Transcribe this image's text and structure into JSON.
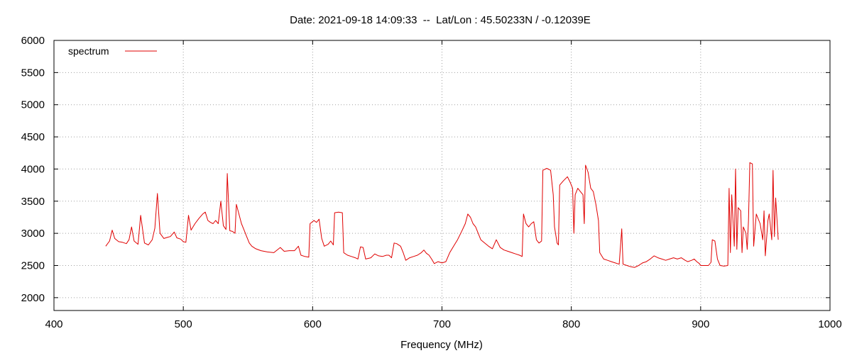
{
  "chart_data": {
    "type": "line",
    "title": "Date: 2021-09-18 14:09:33  --  Lat/Lon : 45.50233N / -0.12039E",
    "xlabel": "Frequency (MHz)",
    "ylabel": "",
    "xlim": [
      400,
      1000
    ],
    "ylim": [
      1800,
      6000
    ],
    "xticks": [
      400,
      500,
      600,
      700,
      800,
      900,
      1000
    ],
    "yticks": [
      2000,
      2500,
      3000,
      3500,
      4000,
      4500,
      5000,
      5500,
      6000
    ],
    "grid": true,
    "legend_position": "top-left",
    "series": [
      {
        "name": "spectrum",
        "color": "#e00000",
        "points": [
          [
            440,
            2800
          ],
          [
            443,
            2880
          ],
          [
            445,
            3050
          ],
          [
            447,
            2920
          ],
          [
            450,
            2870
          ],
          [
            453,
            2860
          ],
          [
            456,
            2840
          ],
          [
            458,
            2900
          ],
          [
            460,
            3100
          ],
          [
            462,
            2880
          ],
          [
            465,
            2830
          ],
          [
            467,
            3280
          ],
          [
            470,
            2850
          ],
          [
            473,
            2820
          ],
          [
            476,
            2900
          ],
          [
            478,
            3080
          ],
          [
            480,
            3620
          ],
          [
            482,
            3000
          ],
          [
            485,
            2920
          ],
          [
            488,
            2940
          ],
          [
            490,
            2950
          ],
          [
            493,
            3020
          ],
          [
            495,
            2930
          ],
          [
            498,
            2910
          ],
          [
            500,
            2870
          ],
          [
            502,
            2860
          ],
          [
            504,
            3280
          ],
          [
            506,
            3050
          ],
          [
            509,
            3150
          ],
          [
            512,
            3230
          ],
          [
            515,
            3300
          ],
          [
            517,
            3330
          ],
          [
            519,
            3200
          ],
          [
            521,
            3170
          ],
          [
            523,
            3150
          ],
          [
            525,
            3200
          ],
          [
            527,
            3150
          ],
          [
            529,
            3500
          ],
          [
            531,
            3120
          ],
          [
            533,
            3060
          ],
          [
            534,
            3930
          ],
          [
            536,
            3040
          ],
          [
            538,
            3030
          ],
          [
            540,
            3000
          ],
          [
            541,
            3450
          ],
          [
            543,
            3300
          ],
          [
            545,
            3150
          ],
          [
            547,
            3050
          ],
          [
            549,
            2950
          ],
          [
            551,
            2850
          ],
          [
            553,
            2800
          ],
          [
            556,
            2760
          ],
          [
            560,
            2730
          ],
          [
            565,
            2710
          ],
          [
            570,
            2700
          ],
          [
            575,
            2780
          ],
          [
            578,
            2720
          ],
          [
            582,
            2730
          ],
          [
            586,
            2730
          ],
          [
            589,
            2800
          ],
          [
            591,
            2660
          ],
          [
            594,
            2640
          ],
          [
            597,
            2630
          ],
          [
            598,
            3150
          ],
          [
            601,
            3200
          ],
          [
            603,
            3170
          ],
          [
            605,
            3220
          ],
          [
            607,
            2920
          ],
          [
            609,
            2800
          ],
          [
            612,
            2830
          ],
          [
            614,
            2880
          ],
          [
            616,
            2820
          ],
          [
            617,
            3320
          ],
          [
            620,
            3330
          ],
          [
            623,
            3320
          ],
          [
            624,
            2700
          ],
          [
            627,
            2660
          ],
          [
            630,
            2640
          ],
          [
            633,
            2620
          ],
          [
            635,
            2600
          ],
          [
            637,
            2790
          ],
          [
            639,
            2780
          ],
          [
            641,
            2600
          ],
          [
            645,
            2620
          ],
          [
            648,
            2680
          ],
          [
            651,
            2650
          ],
          [
            654,
            2640
          ],
          [
            657,
            2660
          ],
          [
            659,
            2660
          ],
          [
            661,
            2620
          ],
          [
            663,
            2850
          ],
          [
            665,
            2840
          ],
          [
            668,
            2800
          ],
          [
            670,
            2700
          ],
          [
            672,
            2580
          ],
          [
            675,
            2620
          ],
          [
            678,
            2640
          ],
          [
            681,
            2660
          ],
          [
            684,
            2700
          ],
          [
            686,
            2740
          ],
          [
            688,
            2690
          ],
          [
            690,
            2660
          ],
          [
            692,
            2600
          ],
          [
            694,
            2530
          ],
          [
            697,
            2560
          ],
          [
            700,
            2540
          ],
          [
            703,
            2560
          ],
          [
            706,
            2700
          ],
          [
            709,
            2800
          ],
          [
            712,
            2900
          ],
          [
            715,
            3020
          ],
          [
            718,
            3150
          ],
          [
            720,
            3300
          ],
          [
            722,
            3250
          ],
          [
            724,
            3150
          ],
          [
            726,
            3100
          ],
          [
            728,
            3000
          ],
          [
            730,
            2900
          ],
          [
            733,
            2850
          ],
          [
            736,
            2800
          ],
          [
            739,
            2760
          ],
          [
            742,
            2900
          ],
          [
            745,
            2780
          ],
          [
            748,
            2740
          ],
          [
            751,
            2720
          ],
          [
            754,
            2700
          ],
          [
            757,
            2680
          ],
          [
            760,
            2660
          ],
          [
            762,
            2640
          ],
          [
            763,
            3300
          ],
          [
            765,
            3150
          ],
          [
            767,
            3100
          ],
          [
            769,
            3150
          ],
          [
            771,
            3180
          ],
          [
            773,
            2900
          ],
          [
            775,
            2850
          ],
          [
            777,
            2880
          ],
          [
            778,
            3980
          ],
          [
            781,
            4010
          ],
          [
            784,
            3980
          ],
          [
            786,
            3600
          ],
          [
            787,
            3100
          ],
          [
            789,
            2850
          ],
          [
            790,
            2820
          ],
          [
            791,
            3750
          ],
          [
            794,
            3820
          ],
          [
            797,
            3880
          ],
          [
            799,
            3800
          ],
          [
            801,
            3700
          ],
          [
            802,
            3000
          ],
          [
            803,
            3600
          ],
          [
            805,
            3700
          ],
          [
            807,
            3650
          ],
          [
            809,
            3600
          ],
          [
            810,
            3150
          ],
          [
            811,
            4060
          ],
          [
            813,
            3950
          ],
          [
            815,
            3700
          ],
          [
            817,
            3650
          ],
          [
            819,
            3450
          ],
          [
            821,
            3200
          ],
          [
            822,
            2700
          ],
          [
            825,
            2600
          ],
          [
            828,
            2580
          ],
          [
            831,
            2560
          ],
          [
            834,
            2540
          ],
          [
            837,
            2520
          ],
          [
            839,
            3070
          ],
          [
            840,
            2520
          ],
          [
            843,
            2500
          ],
          [
            846,
            2480
          ],
          [
            849,
            2470
          ],
          [
            852,
            2500
          ],
          [
            855,
            2540
          ],
          [
            858,
            2560
          ],
          [
            861,
            2600
          ],
          [
            864,
            2650
          ],
          [
            867,
            2620
          ],
          [
            870,
            2600
          ],
          [
            873,
            2580
          ],
          [
            876,
            2600
          ],
          [
            879,
            2620
          ],
          [
            882,
            2600
          ],
          [
            885,
            2620
          ],
          [
            888,
            2580
          ],
          [
            890,
            2560
          ],
          [
            893,
            2580
          ],
          [
            895,
            2600
          ],
          [
            897,
            2560
          ],
          [
            899,
            2530
          ],
          [
            900,
            2500
          ],
          [
            903,
            2500
          ],
          [
            906,
            2500
          ],
          [
            908,
            2550
          ],
          [
            909,
            2900
          ],
          [
            911,
            2880
          ],
          [
            913,
            2600
          ],
          [
            915,
            2500
          ],
          [
            918,
            2490
          ],
          [
            921,
            2500
          ],
          [
            922,
            3700
          ],
          [
            923,
            2700
          ],
          [
            924,
            3600
          ],
          [
            926,
            2800
          ],
          [
            927,
            4000
          ],
          [
            928,
            2750
          ],
          [
            929,
            3400
          ],
          [
            931,
            3350
          ],
          [
            932,
            2700
          ],
          [
            933,
            3100
          ],
          [
            935,
            3000
          ],
          [
            936,
            2750
          ],
          [
            937,
            3200
          ],
          [
            938,
            4100
          ],
          [
            940,
            4080
          ],
          [
            941,
            2800
          ],
          [
            943,
            3300
          ],
          [
            945,
            3200
          ],
          [
            946,
            3150
          ],
          [
            948,
            2900
          ],
          [
            949,
            3350
          ],
          [
            950,
            2650
          ],
          [
            952,
            3200
          ],
          [
            953,
            3300
          ],
          [
            955,
            2900
          ],
          [
            956,
            3980
          ],
          [
            957,
            2950
          ],
          [
            958,
            3550
          ],
          [
            960,
            2900
          ]
        ]
      }
    ]
  }
}
